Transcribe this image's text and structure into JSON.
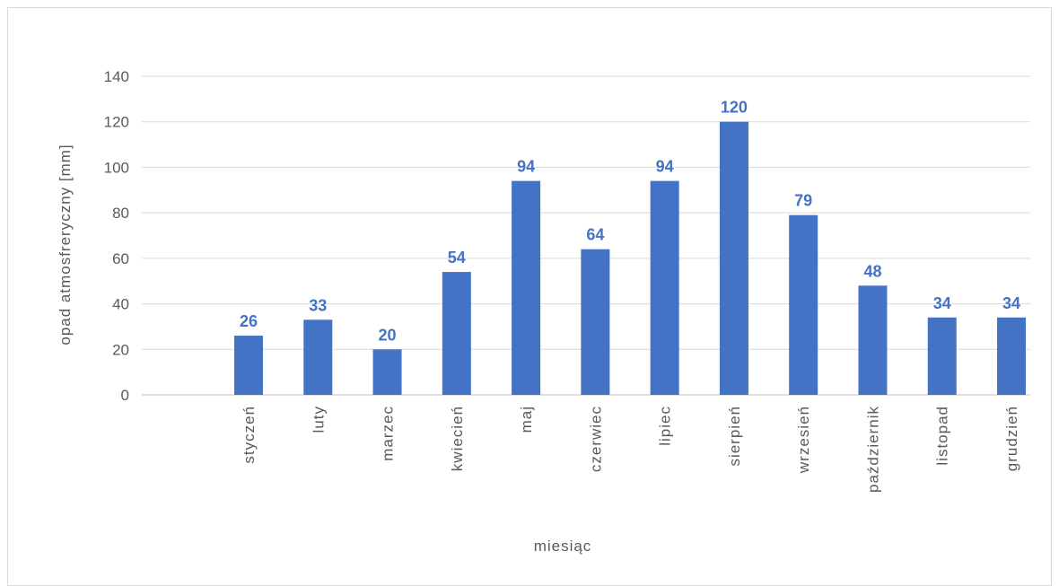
{
  "chart_data": {
    "type": "bar",
    "categories": [
      "styczeń",
      "luty",
      "marzec",
      "kwiecień",
      "maj",
      "czerwiec",
      "lipiec",
      "sierpień",
      "wrzesień",
      "październik",
      "listopad",
      "grudzień"
    ],
    "values": [
      26,
      33,
      20,
      54,
      94,
      64,
      94,
      120,
      79,
      48,
      34,
      34
    ],
    "xlabel": "miesiąc",
    "ylabel": "opad atmosfreryczny [mm]",
    "ylim": [
      0,
      140
    ],
    "yticks": [
      0,
      20,
      40,
      60,
      80,
      100,
      120,
      140
    ],
    "bar_color": "#4472c4",
    "label_color": "#4472c4",
    "grid": true,
    "legend": "none"
  }
}
